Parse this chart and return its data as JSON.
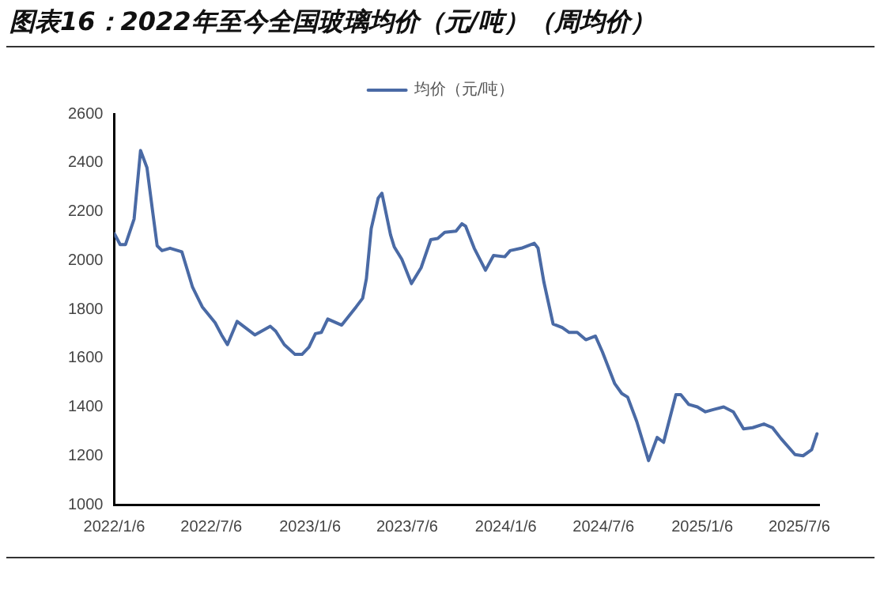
{
  "chart_data": {
    "type": "line",
    "title": "图表16：2022年至今全国玻璃均价（元/吨）（周均价）",
    "x": [
      "2022-01-06",
      "2022-01-17",
      "2022-01-27",
      "2022-02-12",
      "2022-02-24",
      "2022-03-08",
      "2022-03-18",
      "2022-03-27",
      "2022-04-05",
      "2022-04-20",
      "2022-05-12",
      "2022-06-01",
      "2022-06-19",
      "2022-07-13",
      "2022-07-25",
      "2022-08-05",
      "2022-08-23",
      "2022-09-10",
      "2022-09-25",
      "2022-10-24",
      "2022-11-03",
      "2022-11-19",
      "2022-12-09",
      "2022-12-22",
      "2023-01-04",
      "2023-01-16",
      "2023-01-27",
      "2023-02-08",
      "2023-03-06",
      "2023-04-02",
      "2023-04-14",
      "2023-04-21",
      "2023-04-30",
      "2023-05-13",
      "2023-05-20",
      "2023-06-05",
      "2023-06-12",
      "2023-06-26",
      "2023-07-14",
      "2023-08-01",
      "2023-08-19",
      "2023-09-01",
      "2023-09-14",
      "2023-10-05",
      "2023-10-16",
      "2023-10-23",
      "2023-11-08",
      "2023-11-29",
      "2023-12-14",
      "2024-01-04",
      "2024-01-14",
      "2024-02-04",
      "2024-02-28",
      "2024-03-06",
      "2024-03-17",
      "2024-04-03",
      "2024-04-20",
      "2024-05-03",
      "2024-05-18",
      "2024-06-03",
      "2024-06-21",
      "2024-07-04",
      "2024-07-27",
      "2024-08-09",
      "2024-08-20",
      "2024-09-06",
      "2024-09-28",
      "2024-10-14",
      "2024-10-26",
      "2024-11-18",
      "2024-11-27",
      "2024-12-12",
      "2024-12-28",
      "2025-01-12",
      "2025-01-28",
      "2025-02-15",
      "2025-03-05",
      "2025-03-24",
      "2025-04-10",
      "2025-05-01",
      "2025-05-17",
      "2025-06-02",
      "2025-06-28",
      "2025-07-13",
      "2025-07-29",
      "2025-08-08"
    ],
    "series": [
      {
        "name": "均价（元/吨）",
        "color": "#4a6aa5",
        "values": [
          2110,
          2065,
          2065,
          2170,
          2450,
          2380,
          2210,
          2060,
          2040,
          2050,
          2035,
          1890,
          1810,
          1745,
          1695,
          1655,
          1750,
          1720,
          1695,
          1730,
          1710,
          1655,
          1615,
          1615,
          1645,
          1700,
          1705,
          1760,
          1735,
          1810,
          1845,
          1925,
          2130,
          2255,
          2275,
          2105,
          2055,
          2005,
          1905,
          1970,
          2085,
          2090,
          2115,
          2120,
          2150,
          2140,
          2050,
          1960,
          2020,
          2015,
          2040,
          2050,
          2070,
          2050,
          1910,
          1740,
          1725,
          1705,
          1705,
          1675,
          1690,
          1625,
          1495,
          1455,
          1440,
          1340,
          1180,
          1275,
          1255,
          1450,
          1450,
          1410,
          1400,
          1380,
          1390,
          1400,
          1380,
          1310,
          1315,
          1330,
          1315,
          1270,
          1205,
          1200,
          1225,
          1290
        ]
      }
    ],
    "xlim": [
      "2022-01-06",
      "2025-08-12"
    ],
    "xticks": [
      {
        "value": "2022-01-06",
        "label": "2022/1/6"
      },
      {
        "value": "2022-07-06",
        "label": "2022/7/6"
      },
      {
        "value": "2023-01-06",
        "label": "2023/1/6"
      },
      {
        "value": "2023-07-06",
        "label": "2023/7/6"
      },
      {
        "value": "2024-01-06",
        "label": "2024/1/6"
      },
      {
        "value": "2024-07-06",
        "label": "2024/7/6"
      },
      {
        "value": "2025-01-06",
        "label": "2025/1/6"
      },
      {
        "value": "2025-07-06",
        "label": "2025/7/6"
      }
    ],
    "ylim": [
      1000,
      2600
    ],
    "yticks": [
      1000,
      1200,
      1400,
      1600,
      1800,
      2000,
      2200,
      2400,
      2600
    ],
    "grid": false,
    "legend": "top",
    "marker": "none",
    "line_style": "solid"
  }
}
